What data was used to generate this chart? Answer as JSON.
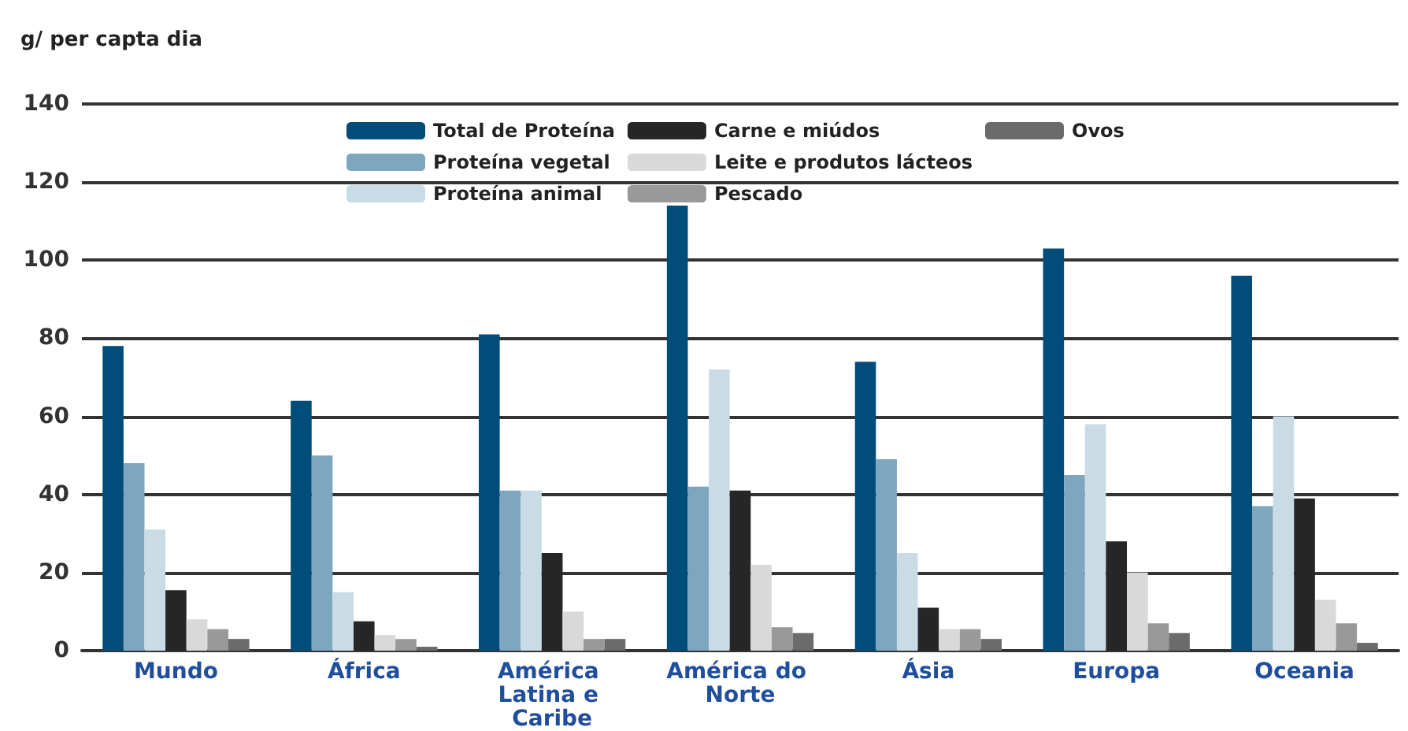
{
  "chart_data": {
    "type": "bar",
    "ylabel": "g/ per capta dia",
    "categories": [
      "Mundo",
      "África",
      "América Latina e Caribe",
      "América do Norte",
      "Ásia",
      "Europa",
      "Oceania"
    ],
    "series": [
      {
        "name": "Total de Proteína",
        "color": "#004d7a",
        "values": [
          78,
          64,
          81,
          114,
          74,
          103,
          96
        ]
      },
      {
        "name": "Proteína vegetal",
        "color": "#7ea7bf",
        "values": [
          48,
          50,
          41,
          42,
          49,
          45,
          37
        ]
      },
      {
        "name": "Proteína animal",
        "color": "#c9dce6",
        "values": [
          31,
          15,
          41,
          72,
          25,
          58,
          60
        ]
      },
      {
        "name": "Carne e miúdos",
        "color": "#262626",
        "values": [
          15.5,
          7.5,
          25,
          41,
          11,
          28,
          39
        ]
      },
      {
        "name": "Leite e produtos lácteos",
        "color": "#d9d9d9",
        "values": [
          8,
          4,
          10,
          22,
          5.5,
          20,
          13
        ]
      },
      {
        "name": "Pescado",
        "color": "#999999",
        "values": [
          5.5,
          3,
          3,
          6,
          5.5,
          7,
          7
        ]
      },
      {
        "name": "Ovos",
        "color": "#6b6b6b",
        "values": [
          3,
          1,
          3,
          4.5,
          3,
          4.5,
          2
        ]
      }
    ],
    "ylim": [
      0,
      140
    ],
    "yticks": [
      0,
      20,
      40,
      60,
      80,
      100,
      120,
      140
    ],
    "grid": "y",
    "legend": "top right"
  }
}
